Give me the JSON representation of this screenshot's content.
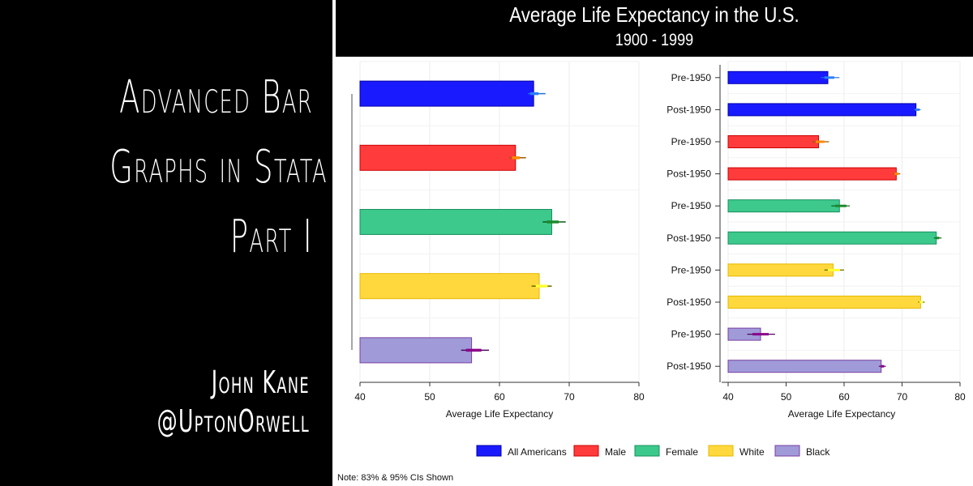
{
  "cover": {
    "title_lines": [
      "Advanced Bar",
      "Graphs in Stata",
      "Part I"
    ],
    "author": "John Kane",
    "handle": "@UptonOrwell"
  },
  "figure": {
    "title": "Average Life Expectancy in the U.S.",
    "subtitle": "1900 - 1999",
    "note": "Note: 83% & 95% CIs Shown"
  },
  "chart_data": [
    {
      "type": "bar",
      "orientation": "horizontal",
      "xlabel": "Average Life Expectancy",
      "xlim": [
        40,
        80
      ],
      "xticks": [
        40,
        50,
        60,
        70,
        80
      ],
      "grid": true,
      "categories": [
        "All Americans",
        "Male",
        "Female",
        "White",
        "Black"
      ],
      "colors": [
        "#1a1aff",
        "#ff3b3b",
        "#3cc98b",
        "#ffd83d",
        "#a09ad9"
      ],
      "values": [
        64.9,
        62.3,
        67.5,
        65.7,
        56.0
      ],
      "ci83": [
        [
          64.4,
          65.6
        ],
        [
          61.8,
          62.9
        ],
        [
          66.8,
          68.5
        ],
        [
          65.2,
          66.9
        ],
        [
          55.2,
          57.4
        ]
      ],
      "ci95": [
        [
          64.1,
          66.6
        ],
        [
          61.4,
          63.8
        ],
        [
          66.2,
          69.5
        ],
        [
          64.6,
          67.5
        ],
        [
          54.5,
          58.5
        ]
      ]
    },
    {
      "type": "bar",
      "orientation": "horizontal",
      "xlabel": "Average Life Expectancy",
      "xlim": [
        40,
        80
      ],
      "xticks": [
        40,
        50,
        60,
        70,
        80
      ],
      "grid": true,
      "rows": [
        {
          "label": "Pre-1950",
          "group": "All Americans",
          "value": 57.2,
          "ci83": [
            56.6,
            58.3
          ],
          "ci95": [
            56.0,
            59.2
          ]
        },
        {
          "label": "Post-1950",
          "group": "All Americans",
          "value": 72.4,
          "ci83": [
            72.3,
            73.0
          ],
          "ci95": [
            72.1,
            73.2
          ]
        },
        {
          "label": "Pre-1950",
          "group": "Male",
          "value": 55.6,
          "ci83": [
            55.1,
            56.6
          ],
          "ci95": [
            54.5,
            57.4
          ]
        },
        {
          "label": "Post-1950",
          "group": "Male",
          "value": 69.0,
          "ci83": [
            68.7,
            69.4
          ],
          "ci95": [
            68.5,
            69.7
          ]
        },
        {
          "label": "Pre-1950",
          "group": "Female",
          "value": 59.2,
          "ci83": [
            58.5,
            60.4
          ],
          "ci95": [
            57.8,
            61.0
          ]
        },
        {
          "label": "Post-1950",
          "group": "Female",
          "value": 75.9,
          "ci83": [
            75.8,
            76.4
          ],
          "ci95": [
            75.5,
            76.8
          ]
        },
        {
          "label": "Pre-1950",
          "group": "White",
          "value": 58.1,
          "ci83": [
            57.2,
            59.3
          ],
          "ci95": [
            56.6,
            60.0
          ]
        },
        {
          "label": "Post-1950",
          "group": "White",
          "value": 73.2,
          "ci83": [
            73.0,
            73.6
          ],
          "ci95": [
            72.8,
            73.9
          ]
        },
        {
          "label": "Pre-1950",
          "group": "Black",
          "value": 45.6,
          "ci83": [
            44.2,
            47.0
          ],
          "ci95": [
            43.3,
            48.1
          ]
        },
        {
          "label": "Post-1950",
          "group": "Black",
          "value": 66.4,
          "ci83": [
            66.3,
            66.9
          ],
          "ci95": [
            66.0,
            67.2
          ]
        }
      ]
    }
  ],
  "legend": {
    "placement": "bottom",
    "items": [
      {
        "label": "All Americans",
        "color": "#1a1aff",
        "border": "#0000aa"
      },
      {
        "label": "Male",
        "color": "#ff3b3b",
        "border": "#cc0000"
      },
      {
        "label": "Female",
        "color": "#3cc98b",
        "border": "#1a9060"
      },
      {
        "label": "White",
        "color": "#ffd83d",
        "border": "#e6b800"
      },
      {
        "label": "Black",
        "color": "#a09ad9",
        "border": "#7a3fa0"
      }
    ]
  },
  "ci_colors": {
    "All Americans": {
      "ci95": "#1f6fd6",
      "ci83": "#2a7fff"
    },
    "Male": {
      "ci95": "#a35a00",
      "ci83": "#ff8a00"
    },
    "Female": {
      "ci95": "#0b5a1a",
      "ci83": "#1a8a2a"
    },
    "White": {
      "ci95": "#6a6a00",
      "ci83": "#ffff33"
    },
    "Black": {
      "ci95": "#4a0a5a",
      "ci83": "#8a008a"
    }
  }
}
